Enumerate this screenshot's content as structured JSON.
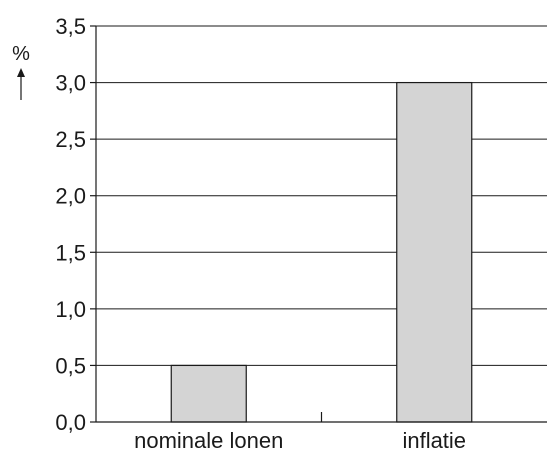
{
  "chart_data": {
    "type": "bar",
    "categories": [
      "nominale lonen",
      "inflatie"
    ],
    "values": [
      0.5,
      3.0
    ],
    "title": "",
    "xlabel": "",
    "ylabel": "%",
    "ylim": [
      0,
      3.5
    ],
    "yticks": [
      "0,0",
      "0,5",
      "1,0",
      "1,5",
      "2,0",
      "2,5",
      "3,0",
      "3,5"
    ],
    "grid": true,
    "legend": "none",
    "colors": {
      "bar_fill": "#d4d4d4",
      "bar_stroke": "#1a1a1a",
      "grid": "#1a1a1a",
      "text": "#1a1a1a"
    }
  }
}
